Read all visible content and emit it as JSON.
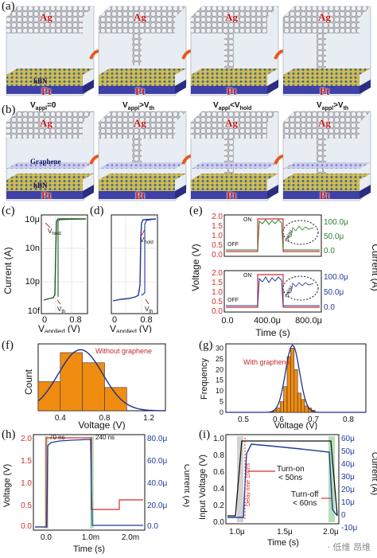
{
  "panel_labels": {
    "a": "(a)",
    "b": "(b)",
    "c": "(c)",
    "d": "(d)",
    "e": "(e)",
    "f": "(f)",
    "g": "(g)",
    "h": "(h)",
    "i": "(i)"
  },
  "materials": {
    "top": "Ag",
    "bottom": "Pt",
    "hbn": "hBN",
    "graphene": "Graphene"
  },
  "row_a_voltages": [
    "V",
    "V",
    "V",
    "V"
  ],
  "row_a_subs": [
    "appl",
    "appl",
    "appl",
    "appl"
  ],
  "row_a_ops": [
    "=0",
    ">V",
    "<V",
    ">V"
  ],
  "row_a_thresh": [
    "",
    "th",
    "hold",
    "th"
  ],
  "colors": {
    "orange": "#f08c10",
    "navy": "#1f2f8f",
    "green": "#2e7d32",
    "red": "#d32f2f",
    "blue": "#1f3a9a"
  },
  "chart_data": [
    {
      "panel": "c",
      "type": "line",
      "ylabel": "Current (A)",
      "xlabel": "V",
      "xlabel_sub": "applied",
      "xlabel_unit": "(V)",
      "yticks": [
        "10μ",
        "10n",
        "10p",
        "10f"
      ],
      "xticks": [
        "0",
        "0.8"
      ],
      "annotations": [
        "V",
        "hold",
        "V",
        "th"
      ],
      "color": "#1b5e20"
    },
    {
      "panel": "d",
      "type": "line",
      "xlabel": "V",
      "xlabel_sub": "applied",
      "xlabel_unit": "(V)",
      "xticks": [
        "0",
        "0.8"
      ],
      "annotations": [
        "V",
        "hold",
        "V",
        "th"
      ],
      "color": "#1f3a9a"
    },
    {
      "panel": "e",
      "type": "line",
      "ylabel_left": "Voltage (V)",
      "ylabel_right": "Current (A)",
      "xlabel": "Time (s)",
      "yticks_left": [
        "2.0",
        "1.5",
        "1.0",
        "0.5",
        "0.0"
      ],
      "yticks_right_top": [
        "100.0μ",
        "50.0μ",
        "0.0"
      ],
      "yticks_right_bottom": [
        "100.0μ",
        "50.0μ",
        "0.0"
      ],
      "xticks": [
        "0.0",
        "400.0μ",
        "800.0μ"
      ],
      "labels": [
        "ON",
        "OFF",
        "Delay",
        "ON",
        "OFF",
        "Delay"
      ]
    },
    {
      "panel": "f",
      "type": "bar",
      "legend": "Without graphene",
      "ylabel": "Count",
      "xlabel": "Voltage (V)",
      "xticks": [
        "0.4",
        "0.8",
        "1.2"
      ],
      "bins": [
        0.3,
        0.5,
        0.7,
        0.9
      ],
      "bin_width": 0.2,
      "values": [
        2,
        4,
        3.3,
        1.6
      ],
      "ylim": [
        0,
        4.6
      ],
      "xlim": [
        0.2,
        1.35
      ]
    },
    {
      "panel": "g",
      "type": "bar",
      "legend": "With graphene",
      "ylabel": "Frequency",
      "xlabel": "Voltage (V)",
      "yticks": [
        "30",
        "25",
        "20",
        "15",
        "10",
        "5",
        "0"
      ],
      "xticks": [
        "0.5",
        "0.6",
        "0.7",
        "0.8"
      ],
      "bins": [
        0.59,
        0.6,
        0.61,
        0.62,
        0.63,
        0.64,
        0.65,
        0.66,
        0.67,
        0.68,
        0.69,
        0.7
      ],
      "bin_width": 0.01,
      "values": [
        1,
        2,
        5,
        12,
        26,
        30,
        20,
        9,
        6,
        3,
        2,
        1
      ],
      "ylim": [
        0,
        32
      ],
      "xlim": [
        0.45,
        0.85
      ]
    },
    {
      "panel": "h",
      "type": "line",
      "ylabel_left": "Voltage (V)",
      "ylabel_right": "Current (A)",
      "xlabel": "Time (s)",
      "yticks_left": [
        "2.0",
        "1.5",
        "1.0",
        "0.5",
        "0.0"
      ],
      "yticks_right": [
        "80.0μ",
        "60.0μ",
        "40.0μ",
        "20.0μ",
        "0.0"
      ],
      "xticks": [
        "0.0",
        "1.0m",
        "2.0m"
      ],
      "annotations": [
        "70 ns",
        "240 ns"
      ]
    },
    {
      "panel": "i",
      "type": "line",
      "ylabel_left": "Input Voltage (V)",
      "ylabel_right": "Current (A)",
      "xlabel": "Time (s)",
      "yticks_left": [
        "1.0",
        "0.8",
        "0.6",
        "0.4",
        "0.2",
        "0.0"
      ],
      "yticks_right": [
        "60μ",
        "50μ",
        "40μ",
        "30μ",
        "20μ",
        "10μ",
        "0",
        "-10μ"
      ],
      "xticks": [
        "1.0μ",
        "1.5μ",
        "2.0μ"
      ],
      "annotations": [
        "Delay time 100ns",
        "Turn-on",
        "< 50ns",
        "Turn-off",
        "< 60ns"
      ]
    }
  ],
  "watermark": "· 低维 昂维"
}
